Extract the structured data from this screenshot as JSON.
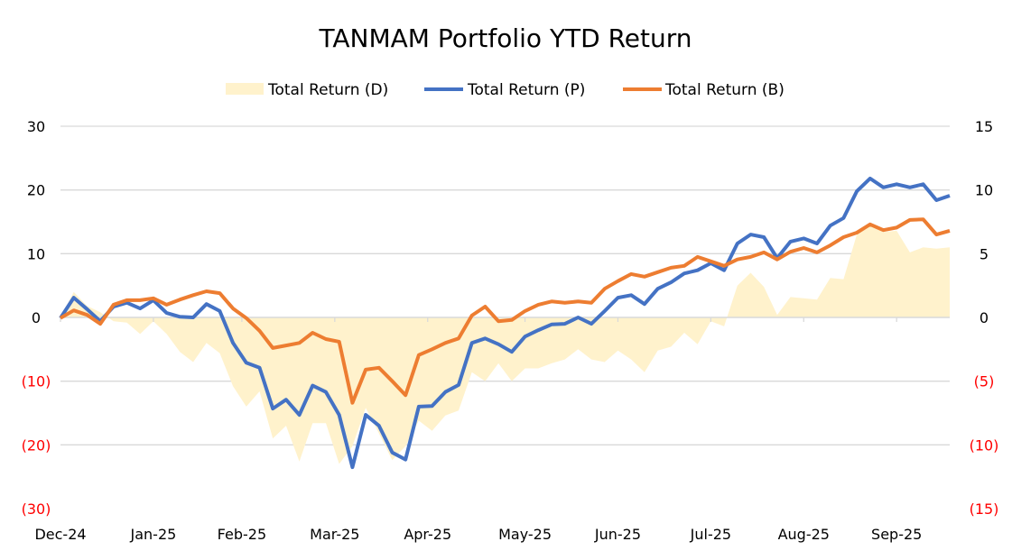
{
  "chart_data": {
    "type": "line",
    "title": "TANMAM Portfolio YTD Return",
    "legend_position": "top",
    "legend": [
      "Total Return (D)",
      "Total Return (P)",
      "Total Return (B)"
    ],
    "xlabel": "",
    "ylabel": "",
    "x_unit": "trading day index",
    "xlim": [
      0,
      201
    ],
    "x_ticks": [
      {
        "day": 0,
        "label": "Dec-24"
      },
      {
        "day": 21,
        "label": "Jan-25"
      },
      {
        "day": 41,
        "label": "Feb-25"
      },
      {
        "day": 62,
        "label": "Mar-25"
      },
      {
        "day": 83,
        "label": "Apr-25"
      },
      {
        "day": 105,
        "label": "May-25"
      },
      {
        "day": 126,
        "label": "Jun-25"
      },
      {
        "day": 147,
        "label": "Jul-25"
      },
      {
        "day": 168,
        "label": "Aug-25"
      },
      {
        "day": 189,
        "label": "Sep-25"
      }
    ],
    "y_left": {
      "lim": [
        -30,
        30
      ],
      "ticks": [
        30,
        20,
        10,
        0,
        -10,
        -20,
        -30
      ],
      "labels": [
        "30",
        "20",
        "10",
        "0",
        "(10)",
        "(20)",
        "(30)"
      ]
    },
    "y_right": {
      "lim": [
        -15,
        15
      ],
      "ticks": [
        15,
        10,
        5,
        0,
        -5,
        -10,
        -15
      ],
      "labels": [
        "15",
        "10",
        "5",
        "0",
        "(5)",
        "(10)",
        "(15)"
      ]
    },
    "grid": true,
    "x_step": 3,
    "series": [
      {
        "name": "Total Return (D)",
        "type": "area",
        "axis": "right",
        "color": "#FFF2CC",
        "values": [
          0.0,
          2.0,
          0.9,
          0.4,
          -0.3,
          -0.4,
          -1.3,
          -0.3,
          -1.3,
          -2.7,
          -3.5,
          -2.0,
          -2.8,
          -5.4,
          -7.0,
          -5.8,
          -9.5,
          -8.5,
          -11.3,
          -8.3,
          -8.3,
          -11.5,
          -10.1,
          -7.1,
          -9.1,
          -11.2,
          -10.1,
          -8.1,
          -8.9,
          -7.7,
          -7.3,
          -4.3,
          -5.0,
          -3.6,
          -5.0,
          -4.0,
          -4.0,
          -3.6,
          -3.3,
          -2.5,
          -3.3,
          -3.5,
          -2.6,
          -3.3,
          -4.3,
          -2.6,
          -2.3,
          -1.2,
          -2.1,
          -0.3,
          -0.7,
          2.5,
          3.5,
          2.4,
          0.2,
          1.6,
          1.5,
          1.4,
          3.1,
          3.0,
          6.5,
          7.2,
          6.7,
          6.8,
          5.1,
          5.5,
          5.4,
          5.5
        ]
      },
      {
        "name": "Total Return (P)",
        "type": "line",
        "axis": "left",
        "color": "#4472C4",
        "values": [
          -0.1,
          3.1,
          1.3,
          -0.6,
          1.7,
          2.3,
          1.4,
          2.7,
          0.7,
          0.1,
          0.0,
          2.1,
          1.0,
          -4.0,
          -7.1,
          -7.9,
          -14.3,
          -12.9,
          -15.3,
          -10.7,
          -11.7,
          -15.3,
          -23.5,
          -15.3,
          -17.0,
          -21.2,
          -22.3,
          -14.0,
          -13.9,
          -11.7,
          -10.6,
          -4.0,
          -3.3,
          -4.2,
          -5.4,
          -3.0,
          -2.0,
          -1.1,
          -1.0,
          0.0,
          -1.0,
          1.0,
          3.1,
          3.5,
          2.1,
          4.5,
          5.5,
          6.9,
          7.4,
          8.5,
          7.4,
          11.6,
          13.0,
          12.6,
          9.3,
          11.9,
          12.4,
          11.6,
          14.4,
          15.6,
          19.8,
          21.8,
          20.4,
          20.9,
          20.4,
          20.9,
          18.4,
          19.1
        ]
      },
      {
        "name": "Total Return (B)",
        "type": "line",
        "axis": "left",
        "color": "#ED7D31",
        "values": [
          -0.1,
          1.1,
          0.4,
          -1.0,
          2.0,
          2.7,
          2.7,
          3.0,
          2.0,
          2.8,
          3.5,
          4.1,
          3.8,
          1.4,
          -0.1,
          -2.1,
          -4.8,
          -4.4,
          -4.0,
          -2.4,
          -3.4,
          -3.8,
          -13.4,
          -8.2,
          -7.9,
          -10.0,
          -12.2,
          -5.9,
          -5.0,
          -4.0,
          -3.3,
          0.3,
          1.7,
          -0.6,
          -0.4,
          1.0,
          2.0,
          2.5,
          2.3,
          2.5,
          2.3,
          4.5,
          5.7,
          6.8,
          6.4,
          7.1,
          7.8,
          8.1,
          9.5,
          8.8,
          8.1,
          9.1,
          9.5,
          10.2,
          9.1,
          10.3,
          10.9,
          10.2,
          11.3,
          12.6,
          13.3,
          14.6,
          13.7,
          14.1,
          15.3,
          15.4,
          13.0,
          13.6
        ]
      }
    ],
    "negative_label_color": "#FF0000"
  }
}
